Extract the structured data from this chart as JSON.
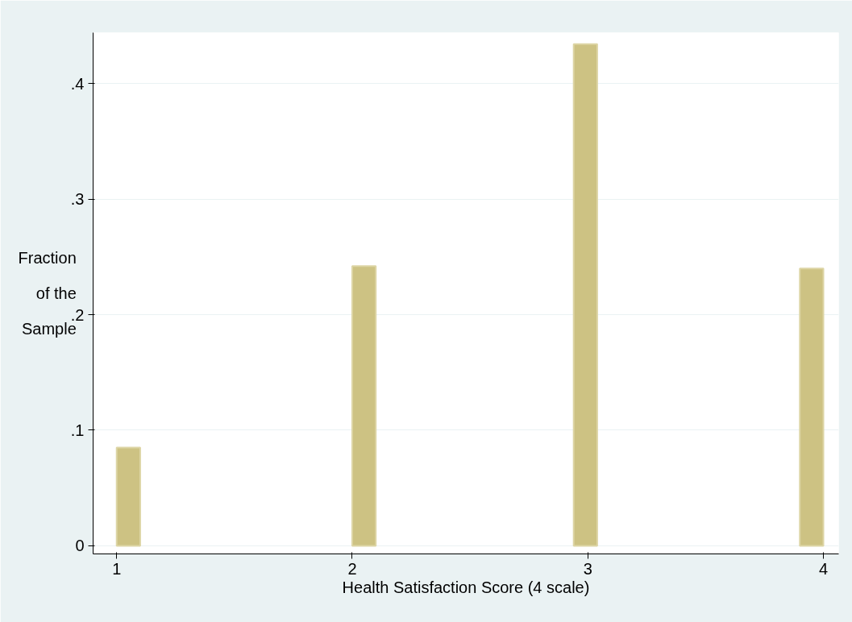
{
  "chart_data": {
    "type": "bar",
    "xlabel": "Health Satisfaction Score (4 scale)",
    "ylabel": "Fraction of the Sample",
    "x": [
      1.05,
      2.05,
      2.99,
      3.95
    ],
    "values": [
      0.085,
      0.242,
      0.434,
      0.24
    ],
    "color": "#cdc283",
    "xlim": [
      0.9,
      4.065
    ],
    "xticks": [
      1,
      2,
      3,
      4
    ],
    "ylim": [
      -0.007,
      0.444
    ],
    "yticks": [
      {
        "value": 0,
        "label": "0"
      },
      {
        "value": 0.1,
        "label": ".1"
      },
      {
        "value": 0.2,
        "label": ".2"
      },
      {
        "value": 0.3,
        "label": ".3"
      },
      {
        "value": 0.4,
        "label": ".4"
      }
    ],
    "grid": "y"
  }
}
